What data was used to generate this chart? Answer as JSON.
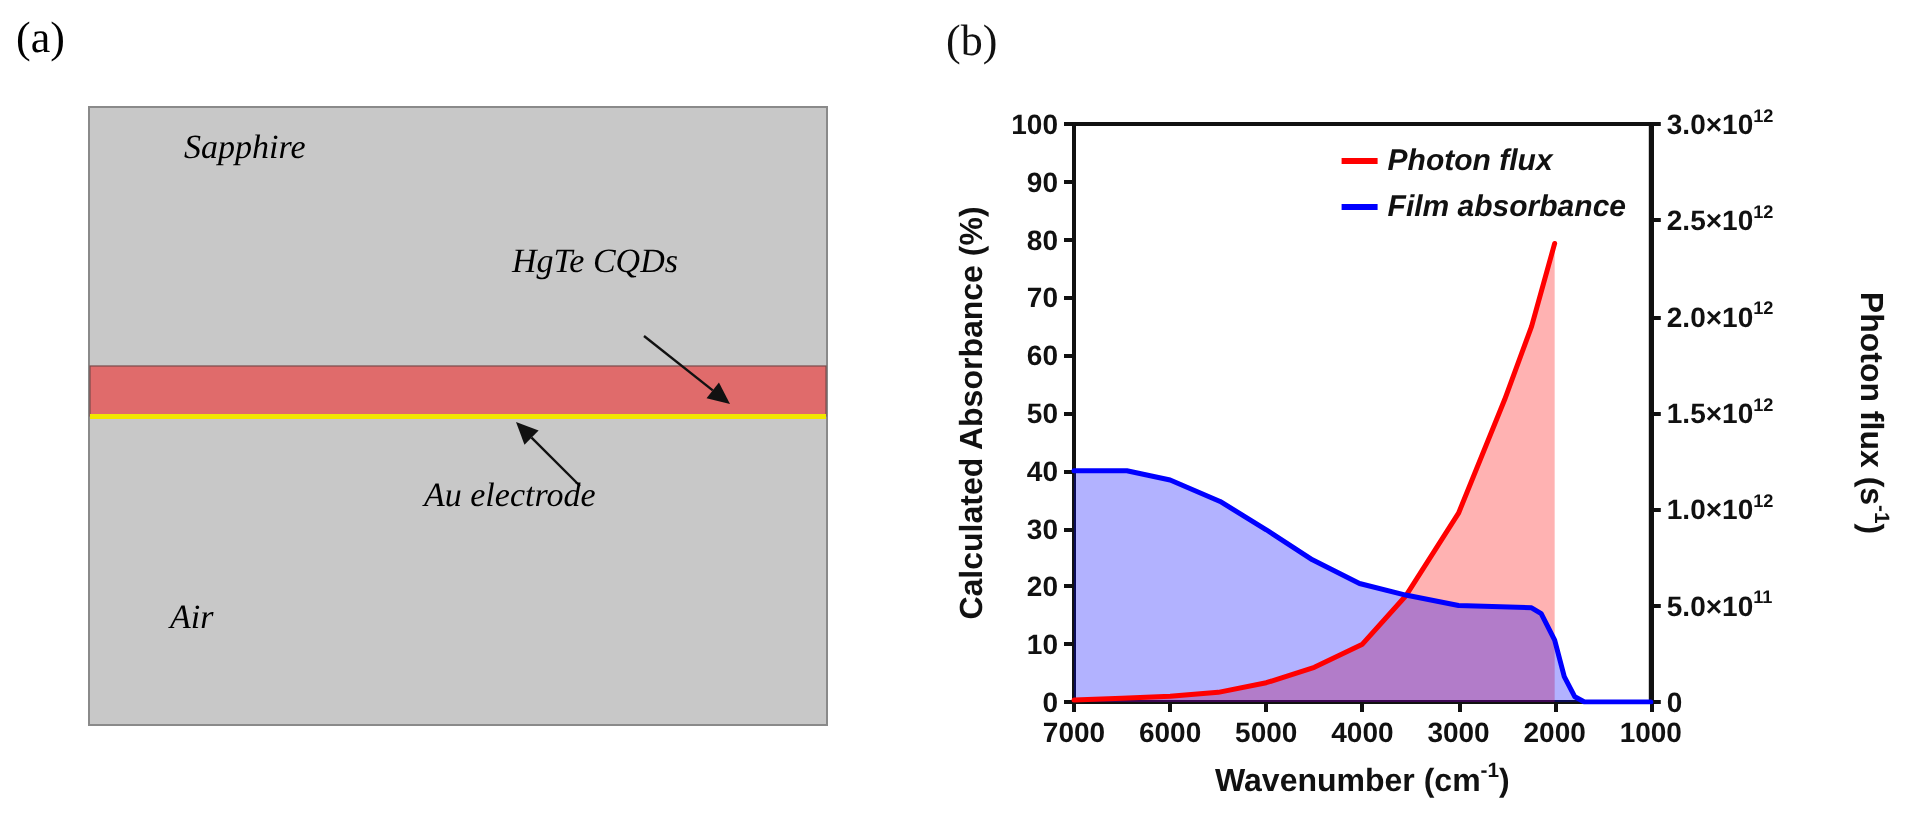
{
  "chart_data": [
    {
      "type": "other",
      "title": "(a)",
      "annotations": [
        "Sapphire",
        "HgTe CQDs",
        "Au electrode",
        "Air"
      ]
    },
    {
      "type": "area",
      "title": "(b)",
      "xlabel": "Wavenumber (cm$^{-1}$)",
      "ylabel": "Calculated Absorbance (%)",
      "y2label": "Photon flux (s$^{-1}$)",
      "xlim": [
        7000,
        1000
      ],
      "xticks": [
        7000,
        6000,
        5000,
        4000,
        3000,
        2000,
        1000
      ],
      "ylim": [
        0,
        100
      ],
      "yticks": [
        0,
        10,
        20,
        30,
        40,
        50,
        60,
        70,
        80,
        90,
        100
      ],
      "y2lim": [
        0,
        3000000000000
      ],
      "y2ticks": [
        {
          "value": 0,
          "label": "0"
        },
        {
          "value": 500000000000,
          "label": "5.0×10$^{11}$"
        },
        {
          "value": 1000000000000,
          "label": "1.0×10$^{12}$"
        },
        {
          "value": 1500000000000,
          "label": "1.5×10$^{12}$"
        },
        {
          "value": 2000000000000,
          "label": "2.0×10$^{12}$"
        },
        {
          "value": 2500000000000,
          "label": "2.5×10$^{12}$"
        },
        {
          "value": 3000000000000,
          "label": "3.0×10$^{12}$"
        }
      ],
      "grid": false,
      "legend": "top right",
      "marker": "none",
      "line_style": "solid",
      "series": [
        {
          "name": "Photon flux",
          "color": "#ff0000",
          "axis": "y2",
          "x": [
            7000,
            6500,
            6000,
            5500,
            5000,
            4500,
            4000,
            3550,
            3000,
            2520,
            2240,
            2000
          ],
          "values": [
            10000000000,
            20000000000,
            30000000000,
            50000000000,
            100000000000,
            180000000000,
            300000000000,
            550000000000,
            980000000000,
            1570000000000,
            1950000000000,
            2380000000000
          ]
        },
        {
          "name": "Film absorbance",
          "color": "#0000ff",
          "axis": "y",
          "x": [
            7000,
            6450,
            6000,
            5480,
            5000,
            4520,
            4030,
            3550,
            3000,
            2240,
            2140,
            2000,
            1900,
            1790,
            1690,
            1000
          ],
          "values": [
            40,
            40,
            38.4,
            34.7,
            29.8,
            24.6,
            20.5,
            18.5,
            16.7,
            16.3,
            15.3,
            10.7,
            4.4,
            0.9,
            0,
            0
          ]
        }
      ]
    }
  ]
}
